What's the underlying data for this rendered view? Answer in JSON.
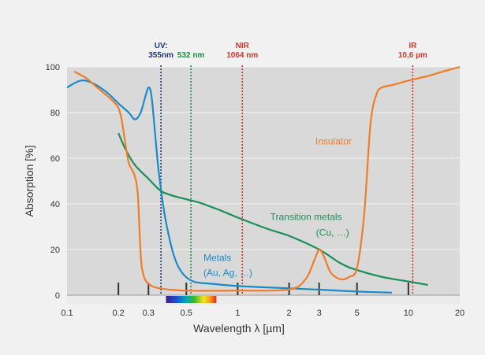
{
  "chart_data": {
    "type": "line",
    "title": "",
    "xlabel": "Wavelength λ [µm]",
    "ylabel": "Absorption [%]",
    "xscale": "log",
    "xlim": [
      0.1,
      20
    ],
    "ylim": [
      0,
      100
    ],
    "x_ticks": [
      "0.1",
      "0.2",
      "0.3",
      "0.5",
      "1",
      "2",
      "3",
      "5",
      "10",
      "20"
    ],
    "y_ticks": [
      "0",
      "20",
      "40",
      "60",
      "80",
      "100"
    ],
    "grid": "horizontal",
    "background": "#d9d9d9",
    "series": [
      {
        "name": "Metals",
        "sublabel": "(Au, Ag, …)",
        "color": "#1a8ac8",
        "points": [
          [
            0.1,
            91
          ],
          [
            0.12,
            94
          ],
          [
            0.14,
            93
          ],
          [
            0.17,
            89
          ],
          [
            0.2,
            84
          ],
          [
            0.23,
            80
          ],
          [
            0.25,
            77
          ],
          [
            0.27,
            80
          ],
          [
            0.29,
            88
          ],
          [
            0.3,
            91
          ],
          [
            0.31,
            89
          ],
          [
            0.32,
            80
          ],
          [
            0.34,
            58
          ],
          [
            0.36,
            43
          ],
          [
            0.38,
            32
          ],
          [
            0.42,
            18
          ],
          [
            0.47,
            10
          ],
          [
            0.55,
            6
          ],
          [
            0.7,
            5
          ],
          [
            1,
            4
          ],
          [
            2,
            3
          ],
          [
            3,
            2.4
          ],
          [
            5,
            1.6
          ],
          [
            8,
            1.1
          ]
        ]
      },
      {
        "name": "Transition metals",
        "sublabel": "(Cu, …)",
        "color": "#1b8e5a",
        "points": [
          [
            0.2,
            71
          ],
          [
            0.22,
            64
          ],
          [
            0.25,
            57
          ],
          [
            0.3,
            51
          ],
          [
            0.35,
            46
          ],
          [
            0.4,
            44
          ],
          [
            0.5,
            42
          ],
          [
            0.6,
            40.5
          ],
          [
            0.8,
            37
          ],
          [
            1,
            34
          ],
          [
            1.5,
            29
          ],
          [
            2,
            26
          ],
          [
            3,
            20
          ],
          [
            4,
            14
          ],
          [
            5,
            11
          ],
          [
            7,
            8
          ],
          [
            10,
            6
          ],
          [
            13,
            4.5
          ]
        ]
      },
      {
        "name": "Insulator",
        "sublabel": "",
        "color": "#ee7d2a",
        "points": [
          [
            0.11,
            98
          ],
          [
            0.13,
            95
          ],
          [
            0.15,
            91
          ],
          [
            0.18,
            86
          ],
          [
            0.2,
            82
          ],
          [
            0.21,
            76
          ],
          [
            0.22,
            66
          ],
          [
            0.23,
            58
          ],
          [
            0.24,
            55
          ],
          [
            0.25,
            52
          ],
          [
            0.26,
            44
          ],
          [
            0.27,
            18
          ],
          [
            0.28,
            9
          ],
          [
            0.3,
            5
          ],
          [
            0.35,
            3
          ],
          [
            0.5,
            2
          ],
          [
            1,
            2
          ],
          [
            2,
            2.5
          ],
          [
            2.5,
            7
          ],
          [
            2.8,
            15
          ],
          [
            3,
            20
          ],
          [
            3.2,
            17
          ],
          [
            3.5,
            10
          ],
          [
            4,
            7
          ],
          [
            4.5,
            8
          ],
          [
            5,
            12
          ],
          [
            5.5,
            35
          ],
          [
            6,
            75
          ],
          [
            6.5,
            88
          ],
          [
            7,
            91
          ],
          [
            8,
            92
          ],
          [
            10,
            94
          ],
          [
            13,
            96
          ],
          [
            16,
            98
          ],
          [
            20,
            100
          ]
        ]
      }
    ],
    "wavelength_markers": [
      {
        "label": "UV:",
        "sublabel": "355nm",
        "x": 0.355,
        "color": "#23357a"
      },
      {
        "label": "532 nm",
        "sublabel": "",
        "x": 0.532,
        "color": "#1b8e3a"
      },
      {
        "label": "NIR",
        "sublabel": "1064 nm",
        "x": 1.064,
        "color": "#c93a2a"
      },
      {
        "label": "IR",
        "sublabel": "10,6 µm",
        "x": 10.6,
        "color": "#c93a2a"
      }
    ],
    "spectrum_band": [
      0.38,
      0.75
    ]
  }
}
